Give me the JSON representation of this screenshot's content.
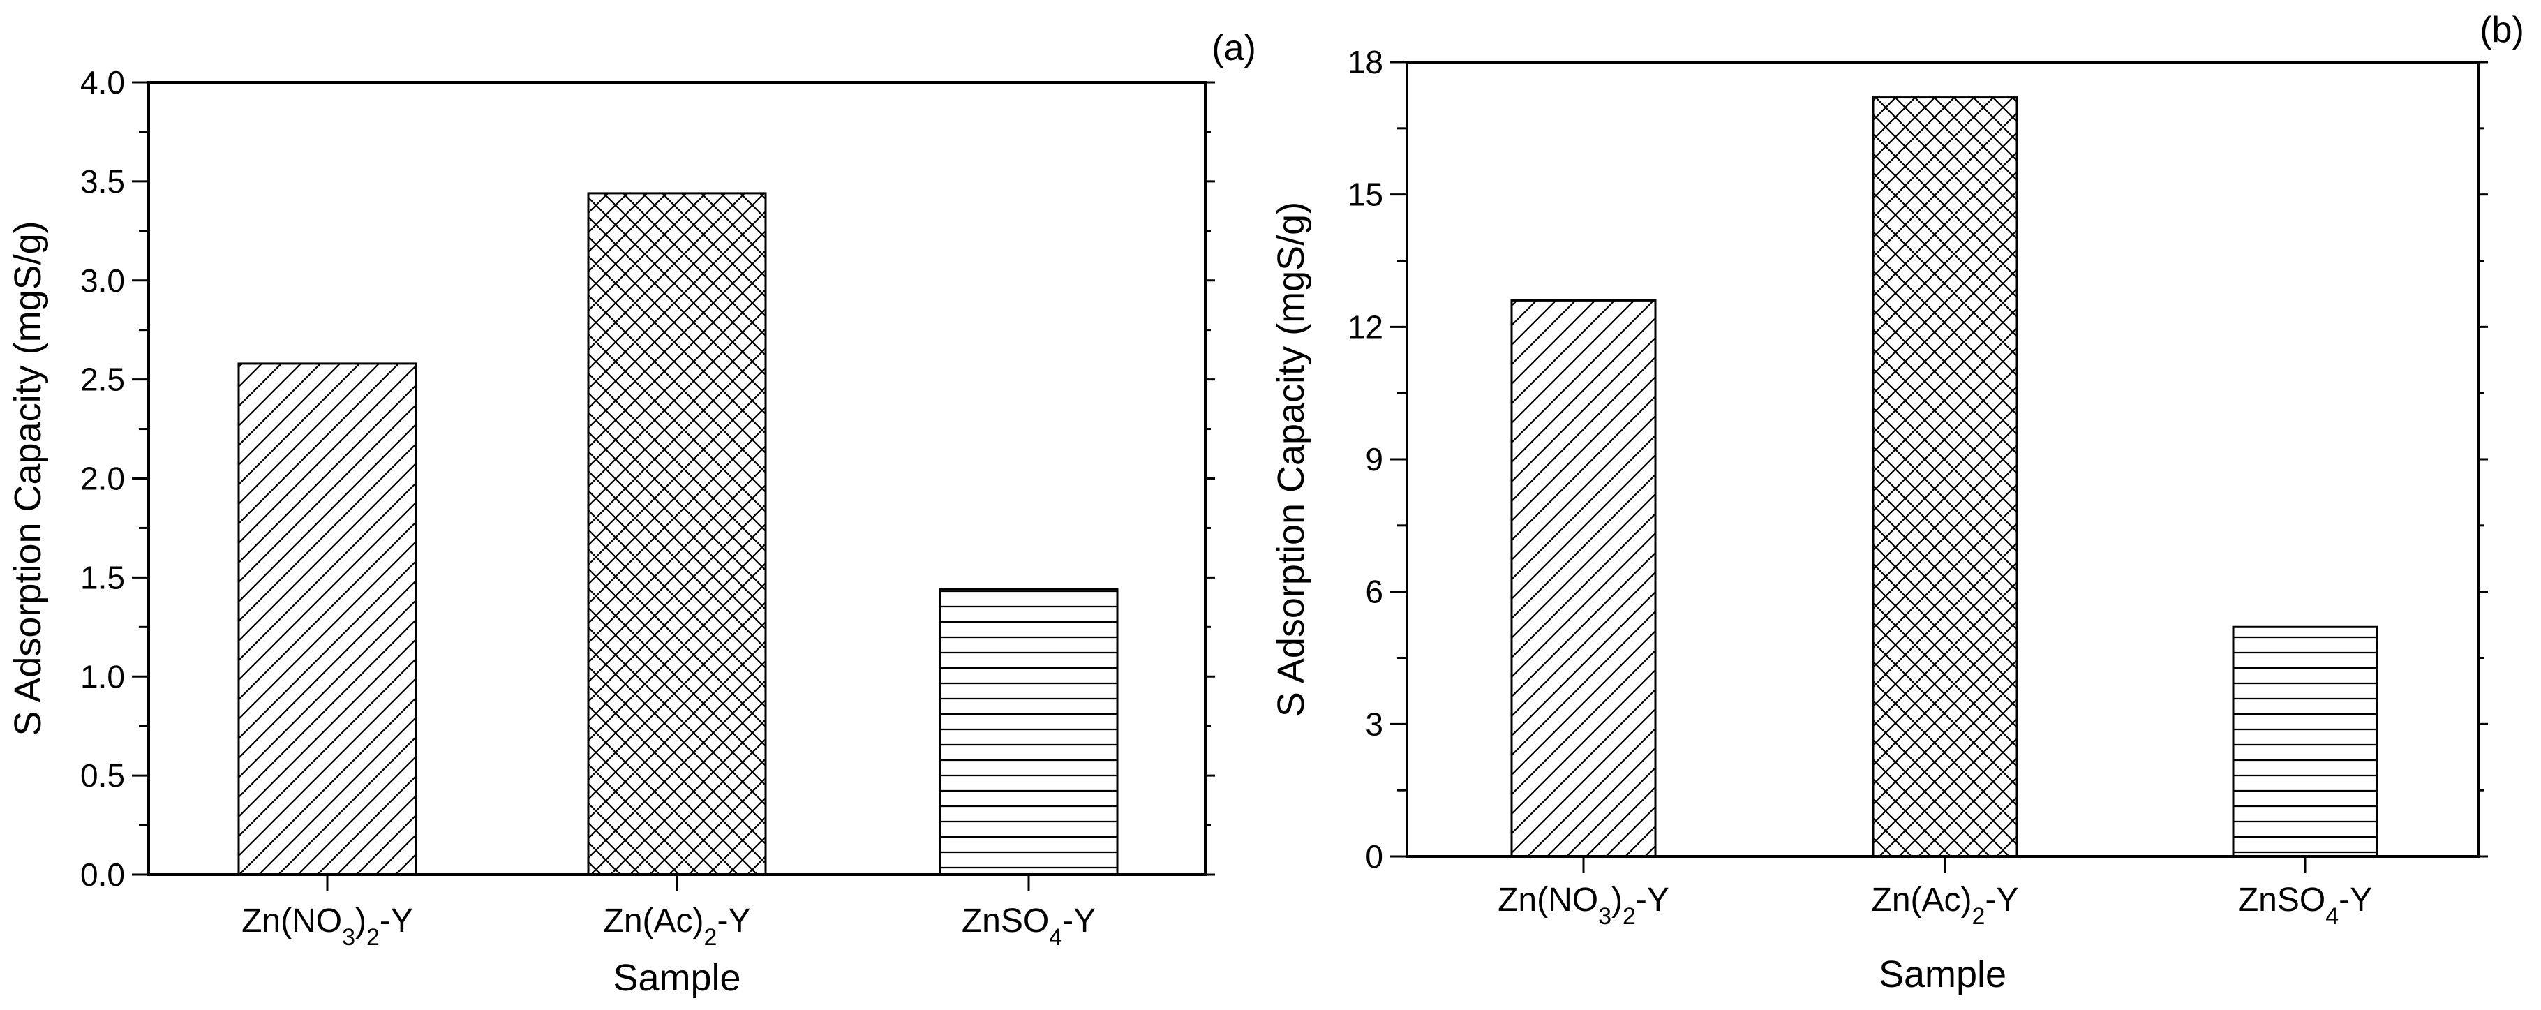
{
  "chart_data": [
    {
      "type": "bar",
      "panel_label": "(a)",
      "categories": [
        {
          "base": "Zn(NO",
          "sub": "3",
          "mid": ")",
          "sub2": "2",
          "tail": "-Y"
        },
        {
          "base": "Zn(Ac)",
          "sub": "2",
          "mid": "",
          "sub2": "",
          "tail": "-Y"
        },
        {
          "base": "ZnSO",
          "sub": "4",
          "mid": "",
          "sub2": "",
          "tail": "-Y"
        }
      ],
      "values": [
        2.58,
        3.44,
        1.44
      ],
      "patterns": [
        "diagonal",
        "crosshatch",
        "horizontal"
      ],
      "xlabel": "Sample",
      "ylabel": "S Adsorption Capacity (mgS/g)",
      "ylim": [
        0,
        4.0
      ],
      "yticks": [
        "0.0",
        "0.5",
        "1.0",
        "1.5",
        "2.0",
        "2.5",
        "3.0",
        "3.5",
        "4.0"
      ],
      "grid": false,
      "legend": "none"
    },
    {
      "type": "bar",
      "panel_label": "(b)",
      "categories": [
        {
          "base": "Zn(NO",
          "sub": "3",
          "mid": ")",
          "sub2": "2",
          "tail": "-Y"
        },
        {
          "base": "Zn(Ac)",
          "sub": "2",
          "mid": "",
          "sub2": "",
          "tail": "-Y"
        },
        {
          "base": "ZnSO",
          "sub": "4",
          "mid": "",
          "sub2": "",
          "tail": "-Y"
        }
      ],
      "values": [
        12.6,
        17.2,
        5.2
      ],
      "patterns": [
        "diagonal",
        "crosshatch",
        "horizontal"
      ],
      "xlabel": "Sample",
      "ylabel": "S Adsorption Capacity (mgS/g)",
      "ylim": [
        0,
        18
      ],
      "yticks": [
        "0",
        "3",
        "6",
        "9",
        "12",
        "15",
        "18"
      ],
      "grid": false,
      "legend": "none"
    }
  ]
}
